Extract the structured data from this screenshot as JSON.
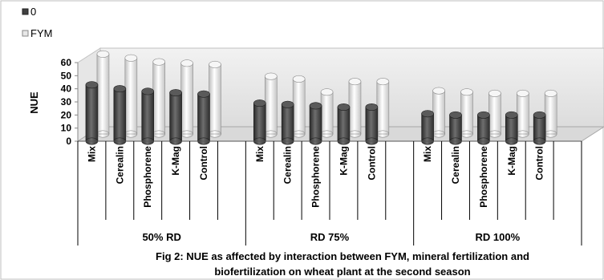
{
  "chart_data": {
    "type": "bar",
    "style": "3d-clustered-column",
    "ylabel": "NUE",
    "ylim": [
      0,
      60
    ],
    "yticks": [
      0,
      10,
      20,
      30,
      40,
      50,
      60
    ],
    "legend_position": "top-left",
    "categories": [
      "Mix",
      "Cerealin",
      "Phosphorene",
      "K-Mag",
      "Control"
    ],
    "groups": [
      "50% RD",
      "RD 75%",
      "RD 100%"
    ],
    "series": [
      {
        "name": "0",
        "color": "#404040",
        "values": [
          [
            43,
            40,
            38,
            37,
            36
          ],
          [
            29,
            28,
            27,
            26,
            26
          ],
          [
            21,
            20,
            20,
            20,
            20
          ]
        ]
      },
      {
        "name": "FYM",
        "color": "#e8e8e8",
        "values": [
          [
            61,
            58,
            55,
            54,
            53
          ],
          [
            44,
            42,
            32,
            40,
            40
          ],
          [
            33,
            32,
            31,
            31,
            31
          ]
        ]
      }
    ],
    "caption_line1": "Fig 2: NUE as affected by interaction between FYM, mineral fertilization and",
    "caption_line2": "biofertilization  on wheat plant at the second season"
  }
}
